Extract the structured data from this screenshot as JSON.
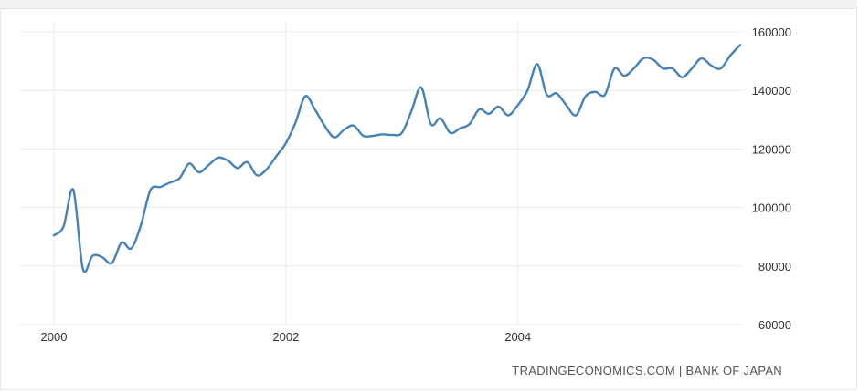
{
  "chart_data": {
    "type": "line",
    "title": "",
    "xlabel": "",
    "ylabel": "",
    "x_ticks": [
      "2000",
      "2002",
      "2004"
    ],
    "y_ticks": [
      "160000",
      "140000",
      "120000",
      "100000",
      "80000",
      "60000"
    ],
    "ylim": [
      60000,
      160000
    ],
    "y_axis_side": "right",
    "grid": true,
    "legend": "none",
    "line_color": "#4682b4",
    "series": [
      {
        "name": "",
        "x": [
          2000.0,
          2000.083,
          2000.167,
          2000.25,
          2000.333,
          2000.417,
          2000.5,
          2000.583,
          2000.667,
          2000.75,
          2000.833,
          2000.917,
          2001.0,
          2001.083,
          2001.167,
          2001.25,
          2001.333,
          2001.417,
          2001.5,
          2001.583,
          2001.667,
          2001.75,
          2001.833,
          2001.917,
          2002.0,
          2002.083,
          2002.167,
          2002.25,
          2002.333,
          2002.417,
          2002.5,
          2002.583,
          2002.667,
          2002.75,
          2002.833,
          2002.917,
          2003.0,
          2003.083,
          2003.167,
          2003.25,
          2003.333,
          2003.417,
          2003.5,
          2003.583,
          2003.667,
          2003.75,
          2003.833,
          2003.917,
          2004.0,
          2004.083,
          2004.167,
          2004.25,
          2004.333,
          2004.417,
          2004.5,
          2004.583,
          2004.667,
          2004.75,
          2004.833,
          2004.917,
          2005.0,
          2005.083,
          2005.167,
          2005.25,
          2005.333,
          2005.417,
          2005.5,
          2005.583,
          2005.667,
          2005.75,
          2005.833,
          2005.917
        ],
        "values": [
          90500,
          93500,
          106000,
          79000,
          83500,
          83000,
          81000,
          88000,
          86000,
          94000,
          106000,
          107000,
          108500,
          110000,
          115000,
          112000,
          114500,
          117000,
          116000,
          113500,
          115500,
          111000,
          113000,
          117500,
          122000,
          129000,
          138000,
          133500,
          128000,
          124000,
          126500,
          128000,
          124500,
          124500,
          125000,
          124800,
          125500,
          133000,
          141000,
          128500,
          130500,
          125500,
          127000,
          128500,
          133500,
          132000,
          134500,
          131500,
          135000,
          140000,
          149000,
          138500,
          139000,
          135000,
          131500,
          138000,
          139500,
          138500,
          147500,
          145000,
          147500,
          151000,
          150500,
          147500,
          147500,
          144500,
          147500,
          151000,
          148500,
          147500,
          152000,
          155500
        ]
      }
    ]
  },
  "footer": {
    "credit": "TRADINGECONOMICS.COM | BANK OF JAPAN"
  }
}
